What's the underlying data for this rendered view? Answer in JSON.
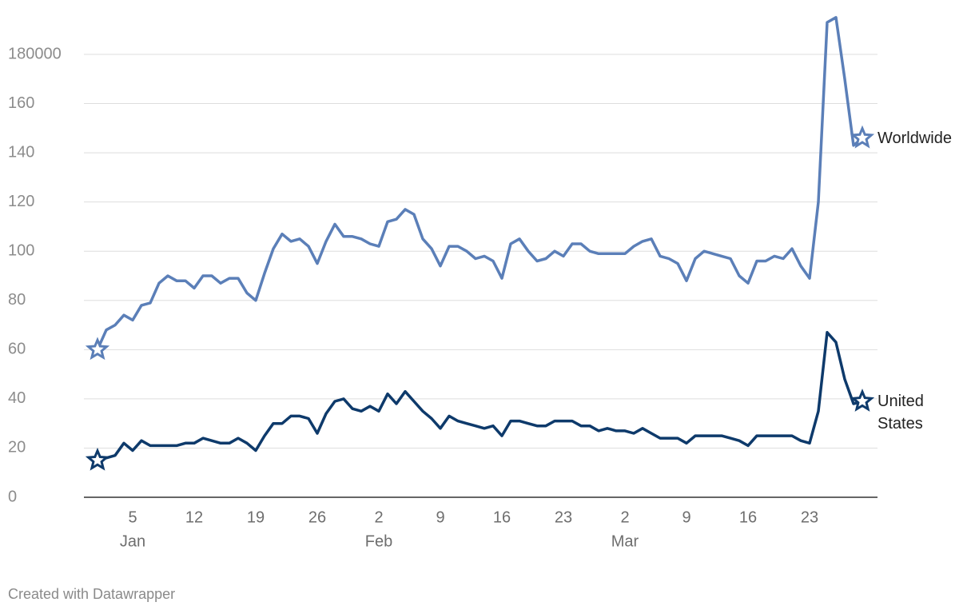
{
  "chart_data": {
    "type": "line",
    "x": [
      "Jan 1",
      "Jan 2",
      "Jan 3",
      "Jan 4",
      "Jan 5",
      "Jan 6",
      "Jan 7",
      "Jan 8",
      "Jan 9",
      "Jan 10",
      "Jan 11",
      "Jan 12",
      "Jan 13",
      "Jan 14",
      "Jan 15",
      "Jan 16",
      "Jan 17",
      "Jan 18",
      "Jan 19",
      "Jan 20",
      "Jan 21",
      "Jan 22",
      "Jan 23",
      "Jan 24",
      "Jan 25",
      "Jan 26",
      "Jan 27",
      "Jan 28",
      "Jan 29",
      "Jan 30",
      "Jan 31",
      "Feb 1",
      "Feb 2",
      "Feb 3",
      "Feb 4",
      "Feb 5",
      "Feb 6",
      "Feb 7",
      "Feb 8",
      "Feb 9",
      "Feb 10",
      "Feb 11",
      "Feb 12",
      "Feb 13",
      "Feb 14",
      "Feb 15",
      "Feb 16",
      "Feb 17",
      "Feb 18",
      "Feb 19",
      "Feb 20",
      "Feb 21",
      "Feb 22",
      "Feb 23",
      "Feb 24",
      "Feb 25",
      "Feb 26",
      "Feb 27",
      "Feb 28",
      "Mar 1",
      "Mar 2",
      "Mar 3",
      "Mar 4",
      "Mar 5",
      "Mar 6",
      "Mar 7",
      "Mar 8",
      "Mar 9",
      "Mar 10",
      "Mar 11",
      "Mar 12",
      "Mar 13",
      "Mar 14",
      "Mar 15",
      "Mar 16",
      "Mar 17",
      "Mar 18",
      "Mar 19",
      "Mar 20",
      "Mar 21",
      "Mar 22",
      "Mar 23",
      "Mar 24",
      "Mar 25",
      "Mar 26",
      "Mar 27",
      "Mar 28",
      "Mar 29"
    ],
    "series": [
      {
        "name": "Worldwide",
        "color": "#5b7fb8",
        "values": [
          60,
          68,
          70,
          74,
          72,
          78,
          79,
          87,
          90,
          88,
          88,
          85,
          90,
          90,
          87,
          89,
          89,
          83,
          80,
          91,
          101,
          107,
          104,
          105,
          102,
          95,
          104,
          111,
          106,
          106,
          105,
          103,
          102,
          112,
          113,
          117,
          115,
          105,
          101,
          94,
          102,
          102,
          100,
          97,
          98,
          96,
          89,
          103,
          105,
          100,
          96,
          97,
          100,
          98,
          103,
          103,
          100,
          99,
          99,
          99,
          99,
          102,
          104,
          105,
          98,
          97,
          95,
          88,
          97,
          100,
          99,
          98,
          97,
          90,
          87,
          96,
          96,
          98,
          97,
          101,
          94,
          89,
          120,
          193,
          195,
          170,
          143,
          146
        ]
      },
      {
        "name": "United States",
        "color": "#0e3a6b",
        "values": [
          15,
          16,
          17,
          22,
          19,
          23,
          21,
          21,
          21,
          21,
          22,
          22,
          24,
          23,
          22,
          22,
          24,
          22,
          19,
          25,
          30,
          30,
          33,
          33,
          32,
          26,
          34,
          39,
          40,
          36,
          35,
          37,
          35,
          42,
          38,
          43,
          39,
          35,
          32,
          28,
          33,
          31,
          30,
          29,
          28,
          29,
          25,
          31,
          31,
          30,
          29,
          29,
          31,
          31,
          31,
          29,
          29,
          27,
          28,
          27,
          27,
          26,
          28,
          26,
          24,
          24,
          24,
          22,
          25,
          25,
          25,
          25,
          24,
          23,
          21,
          25,
          25,
          25,
          25,
          25,
          23,
          22,
          35,
          67,
          63,
          48,
          38,
          39
        ]
      }
    ],
    "ylim": [
      0,
      180
    ],
    "yticks": [
      0,
      20,
      40,
      60,
      80,
      100,
      120,
      140,
      160,
      {
        "value": 180,
        "label": "180000"
      }
    ],
    "xticks": [
      {
        "value": "Jan 5",
        "label": "5"
      },
      {
        "value": "Jan 12",
        "label": "12"
      },
      {
        "value": "Jan 19",
        "label": "19"
      },
      {
        "value": "Jan 26",
        "label": "26"
      },
      {
        "value": "Feb 2",
        "label": "2"
      },
      {
        "value": "Feb 9",
        "label": "9"
      },
      {
        "value": "Feb 16",
        "label": "16"
      },
      {
        "value": "Feb 23",
        "label": "23"
      },
      {
        "value": "Mar 2",
        "label": "2"
      },
      {
        "value": "Mar 9",
        "label": "9"
      },
      {
        "value": "Mar 16",
        "label": "16"
      },
      {
        "value": "Mar 23",
        "label": "23"
      }
    ],
    "month_labels": [
      {
        "value": "Jan 5",
        "label": "Jan"
      },
      {
        "value": "Feb 2",
        "label": "Feb"
      },
      {
        "value": "Mar 2",
        "label": "Mar"
      }
    ],
    "grid": true,
    "note": "Created with Datawrapper"
  }
}
